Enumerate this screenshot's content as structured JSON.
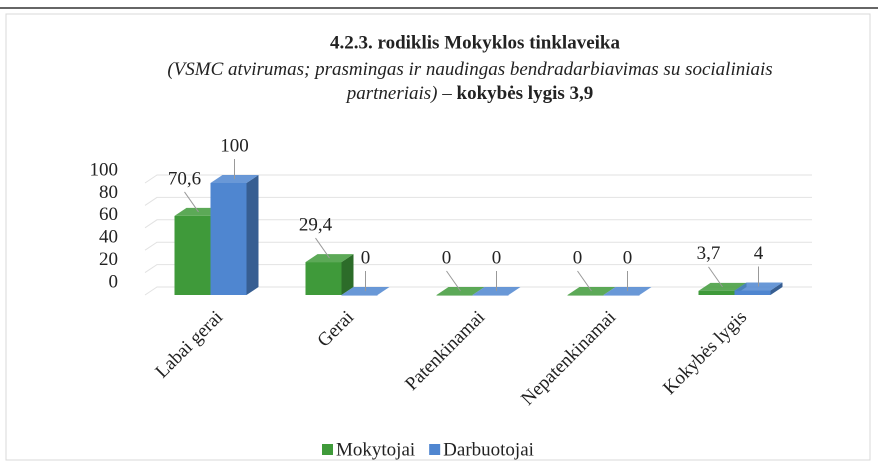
{
  "chart_data": {
    "type": "bar3d",
    "title": "4.2.3. rodiklis Mokyklos tinklaveika",
    "subtitle": "(VSMC atvirumas; prasmingas ir naudingas bendradarbiavimas su socialiniais partneriais) –",
    "subtitle_bold": "kokybės lygis 3,9",
    "categories": [
      "Labai gerai",
      "Gerai",
      "Patenkinamai",
      "Nepatenkinamai",
      "Kokybės lygis"
    ],
    "series": [
      {
        "name": "Mokytojai",
        "color": "#3f9a3a",
        "values": [
          70.6,
          29.4,
          0,
          0,
          3.7
        ],
        "value_labels": [
          "70,6",
          "29,4",
          "0",
          "0",
          "3,7"
        ]
      },
      {
        "name": "Darbuotojai",
        "color": "#4f86d0",
        "values": [
          100,
          0,
          0,
          0,
          4
        ]
      }
    ],
    "ylim": [
      0,
      100
    ],
    "yticks": [
      0,
      20,
      40,
      60,
      80,
      100
    ],
    "grid": true,
    "legend": "bottom"
  }
}
